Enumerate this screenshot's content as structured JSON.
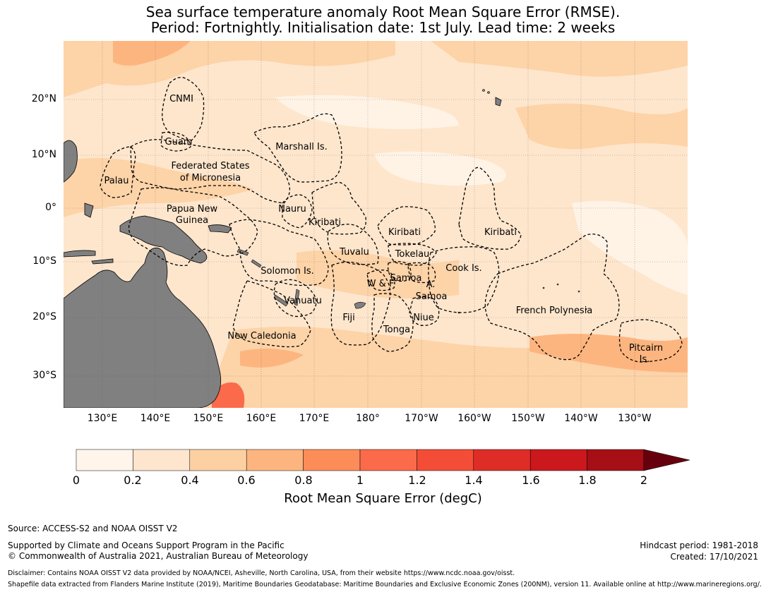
{
  "title": {
    "line1": "Sea surface temperature anomaly Root Mean Square Error (RMSE).",
    "line2": "Period: Fortnightly. Initialisation date: 1st July. Lead time: 2 weeks"
  },
  "map": {
    "background_color": "#fee6cd",
    "land_color": "#808080",
    "lat_labels": [
      "20°N",
      "10°N",
      "0°",
      "10°S",
      "20°S",
      "30°S"
    ],
    "lon_labels": [
      "130°E",
      "140°E",
      "150°E",
      "160°E",
      "170°E",
      "180°",
      "170°W",
      "160°W",
      "150°W",
      "140°W",
      "130°W"
    ],
    "regions": [
      "CNMI",
      "Guam",
      "Marshall Is.",
      "Palau",
      "Federated States",
      "of Micronesia",
      "Papua New",
      "Guinea",
      "Nauru",
      "Kiribati",
      "Kiribati",
      "Kiribati",
      "Tuvalu",
      "Tokelau",
      "Solomon Is.",
      "Cook Is.",
      "Samoa",
      "W & F",
      "A.",
      "Samoa",
      "Vanuatu",
      "Fiji",
      "Niue",
      "French Polynesia",
      "New Caledonia",
      "Tonga",
      "Pitcairn",
      "Is."
    ]
  },
  "colorbar": {
    "label": "Root Mean Square Error (degC)",
    "ticks": [
      "0",
      "0.2",
      "0.4",
      "0.6",
      "0.8",
      "1",
      "1.2",
      "1.4",
      "1.6",
      "1.8",
      "2"
    ],
    "colors": [
      "#fff5eb",
      "#fee6ce",
      "#fdd0a2",
      "#fdb57f",
      "#fc8d59",
      "#fb6a4a",
      "#f44d37",
      "#de2d26",
      "#cb181d",
      "#a50f15"
    ],
    "extend_color": "#67000d"
  },
  "footer": {
    "source": "Source: ACCESS-S2 and NOAA OISST V2",
    "supported": "Supported by Climate and Oceans Support Program in the Pacific",
    "copyright": "© Commonwealth of Australia 2021, Australian Bureau of Meteorology",
    "hindcast": "Hindcast period: 1981-2018",
    "created": "Created: 17/10/2021",
    "disclaimer": "Disclaimer: Contains NOAA OISST V2 data provided by NOAA/NCEI, Asheville, North Carolina, USA, from their website https://www.ncdc.noaa.gov/oisst.",
    "shapefile": "Shapefile data extracted from Flanders Marine Institute (2019), Maritime Boundaries Geodatabase: Maritime Boundaries and Exclusive Economic Zones (200NM), version 11. Available online at http://www.marineregions.org/."
  }
}
